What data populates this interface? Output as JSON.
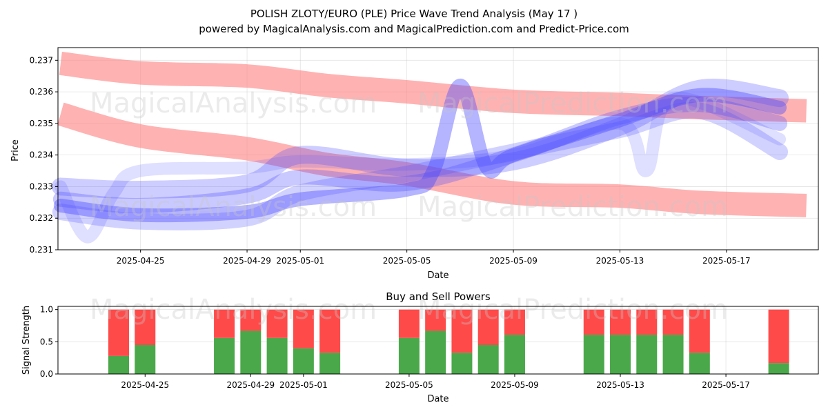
{
  "title": {
    "line1": "POLISH ZLOTY/EURO (PLE) Price Wave Trend Analysis (May 17 )",
    "line2": "powered by MagicalAnalysis.com and MagicalPrediction.com and Predict-Price.com"
  },
  "watermarks": [
    "MagicalAnalysis.com",
    "MagicalPrediction.com"
  ],
  "chart_data": [
    {
      "type": "line",
      "title": "",
      "xlabel": "Date",
      "ylabel": "Price",
      "ylim": [
        0.231,
        0.2374
      ],
      "x_range": [
        "2025-04-22",
        "2025-05-20"
      ],
      "x_ticks": [
        "2025-04-25",
        "2025-04-29",
        "2025-05-01",
        "2025-05-05",
        "2025-05-09",
        "2025-05-13",
        "2025-05-17"
      ],
      "y_ticks": [
        "0.231",
        "0.232",
        "0.233",
        "0.234",
        "0.235",
        "0.236",
        "0.237"
      ],
      "grid": true,
      "colors": {
        "red_band": "#ff7f7f",
        "blue_wave": "#4c4cff"
      },
      "bands": [
        {
          "name": "upper red band",
          "x": [
            "2025-04-22",
            "2025-04-25",
            "2025-04-29",
            "2025-05-02",
            "2025-05-05",
            "2025-05-09",
            "2025-05-13",
            "2025-05-16",
            "2025-05-20"
          ],
          "values": [
            0.2369,
            0.2366,
            0.2365,
            0.2362,
            0.236,
            0.2357,
            0.2356,
            0.2355,
            0.2354
          ]
        },
        {
          "name": "lower red band",
          "x": [
            "2025-04-22",
            "2025-04-25",
            "2025-04-29",
            "2025-05-02",
            "2025-05-05",
            "2025-05-09",
            "2025-05-13",
            "2025-05-16",
            "2025-05-20"
          ],
          "values": [
            0.2353,
            0.2346,
            0.2342,
            0.2337,
            0.2334,
            0.2328,
            0.2327,
            0.2325,
            0.2324
          ]
        }
      ],
      "series": [
        {
          "name": "wave 1",
          "x": [
            "2025-04-22",
            "2025-04-25",
            "2025-04-29",
            "2025-05-01",
            "2025-05-05",
            "2025-05-09",
            "2025-05-13",
            "2025-05-16",
            "2025-05-19"
          ],
          "values": [
            0.233,
            0.2329,
            0.2331,
            0.234,
            0.2336,
            0.2338,
            0.2349,
            0.2361,
            0.2358
          ]
        },
        {
          "name": "wave 2",
          "x": [
            "2025-04-22",
            "2025-04-25",
            "2025-04-29",
            "2025-05-01",
            "2025-05-05",
            "2025-05-09",
            "2025-05-13",
            "2025-05-16",
            "2025-05-19"
          ],
          "values": [
            0.2326,
            0.2324,
            0.2327,
            0.2333,
            0.2331,
            0.234,
            0.2352,
            0.2356,
            0.235
          ]
        },
        {
          "name": "wave 3",
          "x": [
            "2025-04-22",
            "2025-04-25",
            "2025-04-29",
            "2025-05-01",
            "2025-05-05",
            "2025-05-06",
            "2025-05-07",
            "2025-05-08",
            "2025-05-09",
            "2025-05-13",
            "2025-05-16",
            "2025-05-19"
          ],
          "values": [
            0.2324,
            0.2321,
            0.2322,
            0.2326,
            0.2329,
            0.2335,
            0.2362,
            0.2336,
            0.234,
            0.2351,
            0.2359,
            0.2355
          ]
        },
        {
          "name": "wave 4",
          "x": [
            "2025-04-22",
            "2025-04-23",
            "2025-04-24",
            "2025-04-25",
            "2025-04-29",
            "2025-05-01",
            "2025-05-05",
            "2025-05-09",
            "2025-05-13",
            "2025-05-14",
            "2025-05-15",
            "2025-05-19"
          ],
          "values": [
            0.233,
            0.2314,
            0.2328,
            0.2335,
            0.2336,
            0.2338,
            0.2337,
            0.234,
            0.235,
            0.2335,
            0.2358,
            0.2345
          ]
        },
        {
          "name": "wave 5",
          "x": [
            "2025-04-22",
            "2025-04-25",
            "2025-04-29",
            "2025-05-01",
            "2025-05-05",
            "2025-05-09",
            "2025-05-13",
            "2025-05-16",
            "2025-05-19"
          ],
          "values": [
            0.2322,
            0.2319,
            0.232,
            0.2328,
            0.2334,
            0.2341,
            0.2348,
            0.2354,
            0.2341
          ]
        }
      ]
    },
    {
      "type": "bar",
      "title": "Buy and Sell Powers",
      "xlabel": "Date",
      "ylabel": "Signal Strength",
      "ylim": [
        0,
        1.05
      ],
      "y_ticks": [
        "0.0",
        "0.5",
        "1.0"
      ],
      "x_ticks": [
        "2025-04-25",
        "2025-04-29",
        "2025-05-01",
        "2025-05-05",
        "2025-05-09",
        "2025-05-13",
        "2025-05-17"
      ],
      "categories": [
        "2025-04-24",
        "2025-04-25",
        "2025-04-28",
        "2025-04-29",
        "2025-04-30",
        "2025-05-01",
        "2025-05-02",
        "2025-05-05",
        "2025-05-06",
        "2025-05-07",
        "2025-05-08",
        "2025-05-09",
        "2025-05-12",
        "2025-05-13",
        "2025-05-14",
        "2025-05-15",
        "2025-05-16",
        "2025-05-19"
      ],
      "series": [
        {
          "name": "Buy",
          "color": "#4aa84a",
          "values": [
            0.28,
            0.45,
            0.56,
            0.67,
            0.56,
            0.4,
            0.33,
            0.56,
            0.67,
            0.33,
            0.45,
            0.61,
            0.61,
            0.61,
            0.61,
            0.61,
            0.33,
            0.17
          ]
        },
        {
          "name": "Sell",
          "color": "#ff4a4a",
          "values": [
            0.72,
            0.55,
            0.44,
            0.33,
            0.44,
            0.6,
            0.67,
            0.44,
            0.33,
            0.67,
            0.55,
            0.39,
            0.39,
            0.39,
            0.39,
            0.39,
            0.67,
            0.83
          ]
        }
      ]
    }
  ]
}
